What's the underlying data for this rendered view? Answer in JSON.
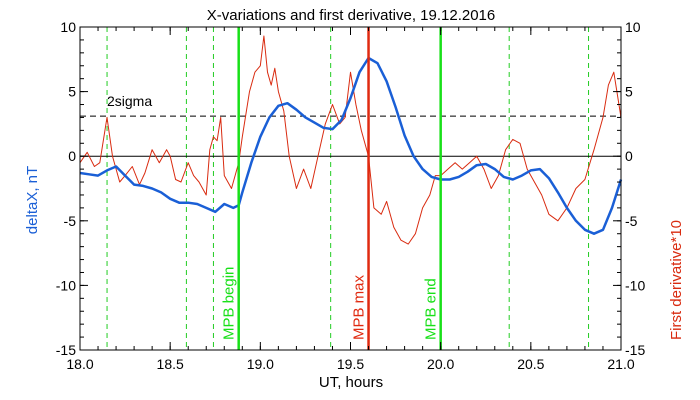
{
  "chart_data": {
    "type": "line",
    "title": "X-variations and first derivative, 19.12.2016",
    "xlabel": "UT, hours",
    "ylabel_left": "deltaX, nT",
    "ylabel_right": "First derivative*10",
    "xlim": [
      18.0,
      21.0
    ],
    "ylim": [
      -15,
      10
    ],
    "x_ticks": [
      18.0,
      18.5,
      19.0,
      19.5,
      20.0,
      20.5,
      21.0
    ],
    "x_tick_labels": [
      "18.0",
      "18.5",
      "19.0",
      "19.5",
      "20.0",
      "20.5",
      "21.0"
    ],
    "y_ticks": [
      -15,
      -10,
      -5,
      0,
      5,
      10
    ],
    "y_tick_labels": [
      "-15",
      "-10",
      "-5",
      "0",
      "5",
      "10"
    ],
    "grid": false,
    "colors": {
      "deltaX": "#1a5fd6",
      "derivative": "#d92b10",
      "green_marker": "#18e018",
      "red_marker": "#e02a10",
      "dashed_green": "#22cc22",
      "sigma_line": "#000000",
      "zero_line": "#000000"
    },
    "sigma": {
      "label": "2sigma",
      "value": 3.1
    },
    "zero_line": 0,
    "markers": [
      {
        "x": 18.88,
        "label": "MPB begin",
        "color": "#18e018"
      },
      {
        "x": 19.6,
        "label": "MPB max",
        "color": "#e02a10"
      },
      {
        "x": 20.0,
        "label": "MPB end",
        "color": "#18e018"
      }
    ],
    "dashed_lines": [
      18.15,
      18.59,
      18.74,
      19.39,
      20.38,
      20.82
    ],
    "series": [
      {
        "key": "deltaX",
        "name": "deltaX, nT",
        "x": [
          18.0,
          18.05,
          18.1,
          18.15,
          18.2,
          18.25,
          18.3,
          18.35,
          18.4,
          18.45,
          18.5,
          18.55,
          18.6,
          18.65,
          18.7,
          18.75,
          18.8,
          18.85,
          18.88,
          18.9,
          18.95,
          19.0,
          19.05,
          19.1,
          19.15,
          19.2,
          19.25,
          19.3,
          19.35,
          19.4,
          19.45,
          19.5,
          19.55,
          19.6,
          19.65,
          19.7,
          19.75,
          19.8,
          19.85,
          19.9,
          19.95,
          20.0,
          20.05,
          20.1,
          20.15,
          20.2,
          20.25,
          20.3,
          20.35,
          20.4,
          20.45,
          20.5,
          20.55,
          20.6,
          20.65,
          20.7,
          20.75,
          20.8,
          20.85,
          20.9,
          20.95,
          21.0
        ],
        "values": [
          -1.3,
          -1.4,
          -1.5,
          -1.1,
          -0.8,
          -1.5,
          -2.2,
          -2.3,
          -2.5,
          -2.8,
          -3.3,
          -3.6,
          -3.6,
          -3.7,
          -4.0,
          -4.3,
          -3.7,
          -4.0,
          -3.8,
          -2.8,
          -0.5,
          1.5,
          3.0,
          3.9,
          4.1,
          3.6,
          3.0,
          2.6,
          2.2,
          2.1,
          2.8,
          4.5,
          6.5,
          7.6,
          7.2,
          5.8,
          3.8,
          1.6,
          0.0,
          -1.0,
          -1.6,
          -1.8,
          -1.8,
          -1.6,
          -1.2,
          -0.7,
          -0.6,
          -1.0,
          -1.6,
          -1.8,
          -1.5,
          -1.1,
          -1.0,
          -1.7,
          -2.8,
          -4.0,
          -5.0,
          -5.7,
          -6.0,
          -5.7,
          -4.0,
          -1.8
        ]
      },
      {
        "key": "derivative",
        "name": "First derivative*10",
        "x": [
          18.0,
          18.04,
          18.08,
          18.11,
          18.15,
          18.18,
          18.22,
          18.25,
          18.29,
          18.33,
          18.36,
          18.4,
          18.44,
          18.48,
          18.5,
          18.53,
          18.56,
          18.6,
          18.63,
          18.66,
          18.7,
          18.72,
          18.74,
          18.76,
          18.78,
          18.8,
          18.84,
          18.88,
          18.9,
          18.94,
          18.97,
          19.0,
          19.02,
          19.04,
          19.06,
          19.08,
          19.1,
          19.13,
          19.16,
          19.2,
          19.24,
          19.28,
          19.32,
          19.36,
          19.4,
          19.44,
          19.47,
          19.5,
          19.53,
          19.56,
          19.6,
          19.63,
          19.67,
          19.7,
          19.74,
          19.78,
          19.82,
          19.86,
          19.9,
          19.94,
          19.97,
          20.0,
          20.04,
          20.08,
          20.12,
          20.16,
          20.2,
          20.24,
          20.28,
          20.32,
          20.36,
          20.4,
          20.44,
          20.48,
          20.52,
          20.56,
          20.6,
          20.65,
          20.7,
          20.75,
          20.8,
          20.85,
          20.9,
          20.93,
          20.96,
          21.0
        ],
        "values": [
          -0.5,
          0.3,
          -0.8,
          -0.5,
          3.0,
          0.0,
          -2.0,
          -1.5,
          -0.8,
          -2.2,
          -1.3,
          0.5,
          -0.5,
          0.5,
          0.0,
          -1.8,
          -2.0,
          -0.5,
          -1.5,
          -2.0,
          -3.0,
          0.5,
          1.5,
          1.2,
          3.0,
          -1.5,
          -2.5,
          -0.5,
          1.5,
          5.0,
          6.5,
          7.0,
          9.3,
          6.5,
          5.5,
          6.8,
          5.0,
          3.5,
          0.0,
          -2.5,
          -1.0,
          -2.5,
          0.0,
          2.5,
          4.0,
          2.5,
          3.0,
          6.5,
          4.0,
          2.0,
          0.0,
          -4.0,
          -4.5,
          -3.5,
          -5.5,
          -6.5,
          -6.8,
          -6.0,
          -4.0,
          -3.0,
          -1.5,
          -1.5,
          -1.0,
          -0.5,
          -1.0,
          -0.5,
          0.0,
          -1.0,
          -2.5,
          -1.5,
          0.5,
          1.3,
          1.0,
          -1.0,
          -2.0,
          -3.0,
          -4.5,
          -5.0,
          -4.0,
          -2.5,
          -1.8,
          0.5,
          3.0,
          5.5,
          6.5,
          3.0
        ]
      }
    ]
  }
}
